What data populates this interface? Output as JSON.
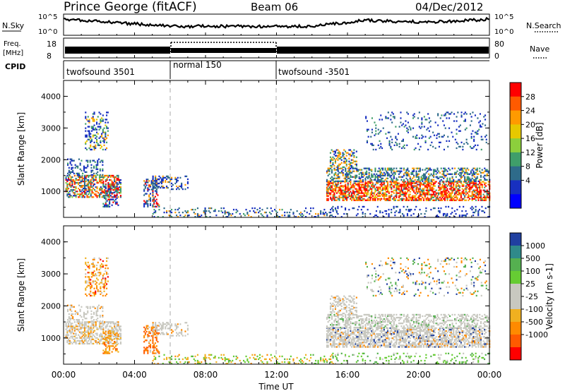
{
  "header": {
    "station": "Prince George (fitACF)",
    "beam": "Beam 06",
    "date": "04/Dec/2012"
  },
  "summary_panel": {
    "nsky_label": "N.Sky",
    "nsearch_label": "N.Search",
    "count_ticks": [
      "10^5",
      "10^0"
    ],
    "freq_label_line1": "Freq.",
    "freq_label_line2": "[MHz]",
    "freq_ticks": [
      "18",
      "8"
    ],
    "nave_label": "Nave",
    "nave_ticks": [
      "80",
      "0"
    ],
    "cpid_label": "CPID",
    "cpid_segments": [
      {
        "label": "twofsound 3501",
        "start_hour": 0,
        "end_hour": 6
      },
      {
        "label": "normal 150",
        "start_hour": 6,
        "end_hour": 12
      },
      {
        "label": "twofsound -3501",
        "start_hour": 12,
        "end_hour": 24
      }
    ]
  },
  "time_axis": {
    "label": "Time UT",
    "ticks": [
      "00:00",
      "04:00",
      "08:00",
      "12:00",
      "16:00",
      "20:00",
      "00:00"
    ],
    "range_hours": [
      0,
      24
    ],
    "mode_change_hours": [
      6,
      12
    ]
  },
  "chart_data": [
    {
      "type": "heatmap",
      "quantity": "Power",
      "ylabel": "Slant Range [km]",
      "ylim": [
        180,
        4500
      ],
      "yticks": [
        "1000",
        "2000",
        "3000",
        "4000"
      ],
      "colorbar_label": "Power [dB]",
      "colorbar_ticks": [
        "28",
        "24",
        "20",
        "16",
        "12",
        "8",
        "4"
      ],
      "colorbar_colors": [
        "#ff0000",
        "#ff5a00",
        "#ff9a00",
        "#e6c800",
        "#8ccf3c",
        "#3f9e6a",
        "#2e6b8a",
        "#1830c0",
        "#0000ff"
      ]
    },
    {
      "type": "heatmap",
      "quantity": "Velocity",
      "ylabel": "Slant Range [km]",
      "ylim": [
        180,
        4500
      ],
      "yticks": [
        "1000",
        "2000",
        "3000",
        "4000"
      ],
      "colorbar_label": "Velocity [m s-1]",
      "colorbar_ticks": [
        "1000",
        "500",
        "100",
        "25",
        "-25",
        "-100",
        "-500",
        "-1000"
      ],
      "colorbar_colors": [
        "#2040a0",
        "#2f8a8a",
        "#55b050",
        "#66cc33",
        "#c8c8c0",
        "#c8c8c0",
        "#f0b020",
        "#ff8a00",
        "#ff5a00",
        "#ff0000"
      ]
    }
  ]
}
